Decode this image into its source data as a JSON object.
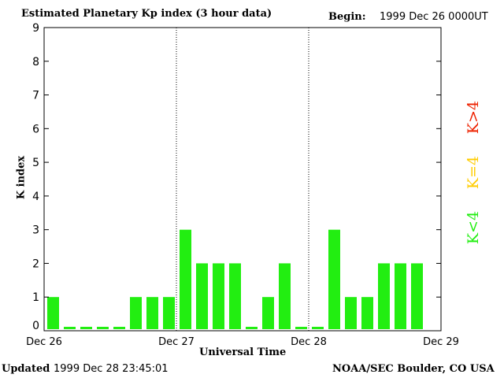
{
  "header": {
    "title": "Estimated Planetary Kp index (3 hour data)",
    "begin_label": "Begin:",
    "begin_value": "1999 Dec 26 0000UT"
  },
  "footer": {
    "updated_label": "Updated",
    "updated_value": "1999 Dec 28 23:45:01",
    "source": "NOAA/SEC Boulder, CO USA"
  },
  "legend": {
    "k_less_4": "K<4",
    "k_equal_4": "K=4",
    "k_greater_4": "K>4"
  },
  "colors": {
    "k_less_4": "#22ee11",
    "k_equal_4": "#ffcc00",
    "k_greater_4": "#ee2200"
  },
  "chart_data": {
    "type": "bar",
    "title": "Estimated Planetary Kp index (3 hour data)",
    "xlabel": "Universal Time",
    "ylabel": "K index",
    "ylim": [
      0,
      9
    ],
    "yticks": [
      "0",
      "1",
      "2",
      "3",
      "4",
      "5",
      "6",
      "7",
      "8",
      "9"
    ],
    "xticks": [
      "Dec 26",
      "Dec 27",
      "Dec 28",
      "Dec 29"
    ],
    "day_separators": [
      "Dec 27",
      "Dec 28"
    ],
    "series": [
      {
        "values": [
          1,
          0,
          0,
          0,
          0,
          1,
          1,
          1,
          3,
          2,
          2,
          2,
          0,
          1,
          2,
          0,
          0,
          3,
          1,
          1,
          2,
          2,
          2
        ]
      }
    ]
  }
}
